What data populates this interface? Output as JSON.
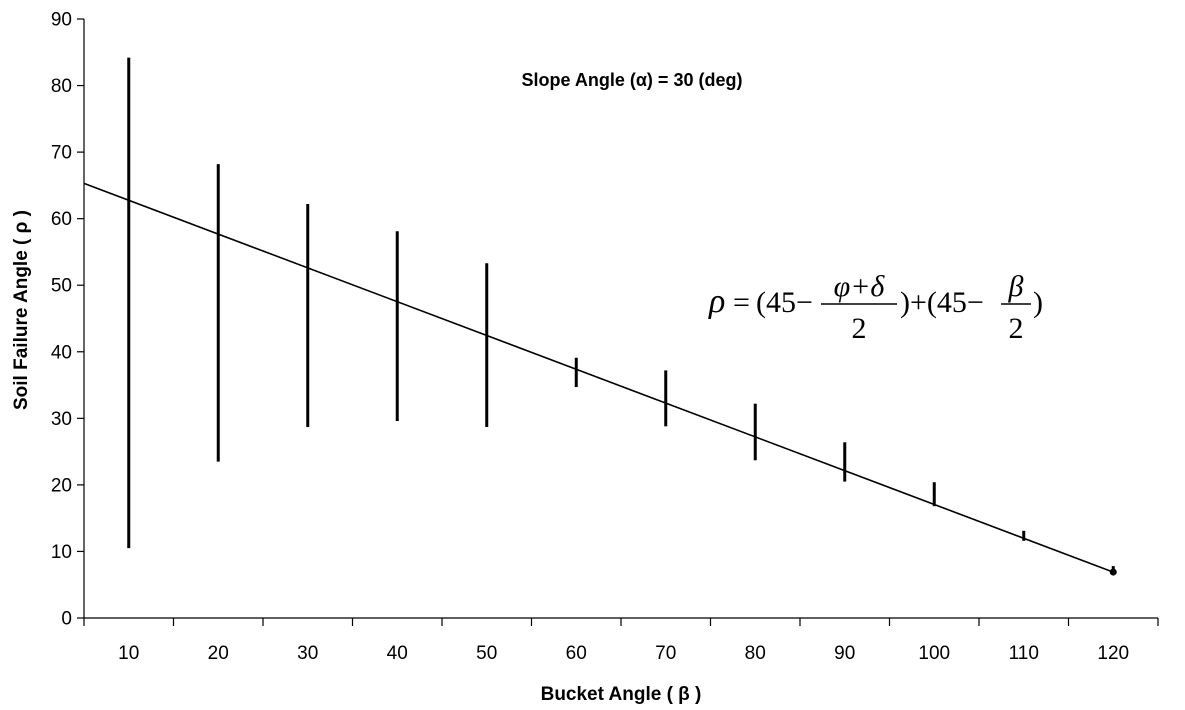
{
  "chart_data": {
    "type": "line",
    "title": "",
    "annotation": "Slope Angle (α) = 30 (deg)",
    "xlabel": "Bucket Angle ( β )",
    "ylabel": "Soil Failure Angle ( ρ )",
    "xlim": [
      5,
      125
    ],
    "ylim": [
      0,
      90
    ],
    "x_ticks": [
      10,
      20,
      30,
      40,
      50,
      60,
      70,
      80,
      90,
      100,
      110,
      120
    ],
    "y_ticks": [
      0,
      10,
      20,
      30,
      40,
      50,
      60,
      70,
      80,
      90
    ],
    "grid": false,
    "series": [
      {
        "type": "range",
        "x": [
          10,
          20,
          30,
          40,
          50,
          60,
          70,
          80,
          90,
          100,
          110,
          120
        ],
        "low": [
          10.5,
          23.5,
          28.7,
          29.6,
          28.7,
          34.7,
          28.8,
          23.7,
          20.5,
          16.8,
          11.6,
          6.8
        ],
        "high": [
          84.2,
          68.2,
          62.2,
          58.1,
          53.3,
          39.1,
          37.2,
          32.2,
          26.4,
          20.4,
          13.1,
          7.8
        ]
      },
      {
        "type": "line",
        "x": [
          5,
          120
        ],
        "y": [
          65.3,
          6.9
        ]
      }
    ],
    "equation": {
      "lhs": "ρ",
      "eq": "=",
      "open1": "(45−",
      "num1": "φ+δ",
      "den1": "2",
      "mid": ")+(45−",
      "num2": "β",
      "den2": "2",
      "close": ")"
    }
  }
}
